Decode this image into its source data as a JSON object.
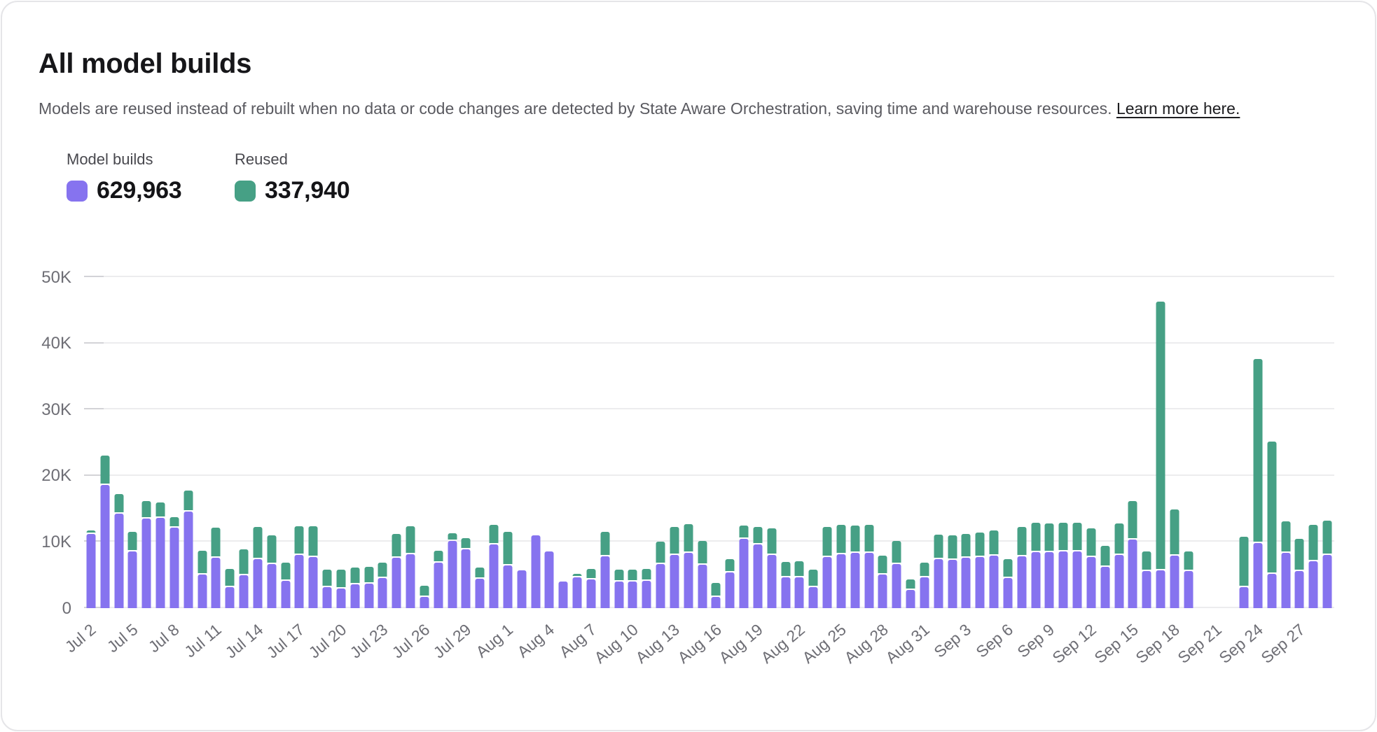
{
  "header": {
    "title": "All model builds",
    "description": "Models are reused instead of rebuilt when no data or code changes are detected by State Aware Orchestration, saving time and warehouse resources.",
    "link_text": "Learn more here."
  },
  "legend": {
    "items": [
      {
        "label": "Model builds",
        "value": "629,963",
        "color": "#8673EF"
      },
      {
        "label": "Reused",
        "value": "337,940",
        "color": "#46A085"
      }
    ]
  },
  "chart_data": {
    "type": "bar",
    "stacked": true,
    "title": "All model builds",
    "grid": true,
    "legend_position": "top-left",
    "ylim": [
      0,
      50000
    ],
    "y_ticks": [
      0,
      10000,
      20000,
      30000,
      40000,
      50000
    ],
    "y_tick_labels": [
      "0",
      "10K",
      "20K",
      "30K",
      "40K",
      "50K"
    ],
    "x_tick_every": 3,
    "x": [
      "Jul 2",
      "Jul 3",
      "Jul 4",
      "Jul 5",
      "Jul 6",
      "Jul 7",
      "Jul 8",
      "Jul 9",
      "Jul 10",
      "Jul 11",
      "Jul 12",
      "Jul 13",
      "Jul 14",
      "Jul 15",
      "Jul 16",
      "Jul 17",
      "Jul 18",
      "Jul 19",
      "Jul 20",
      "Jul 21",
      "Jul 22",
      "Jul 23",
      "Jul 24",
      "Jul 25",
      "Jul 26",
      "Jul 27",
      "Jul 28",
      "Jul 29",
      "Jul 30",
      "Jul 31",
      "Aug 1",
      "Aug 2",
      "Aug 3",
      "Aug 4",
      "Aug 5",
      "Aug 6",
      "Aug 7",
      "Aug 8",
      "Aug 9",
      "Aug 10",
      "Aug 11",
      "Aug 12",
      "Aug 13",
      "Aug 14",
      "Aug 15",
      "Aug 16",
      "Aug 17",
      "Aug 18",
      "Aug 19",
      "Aug 20",
      "Aug 21",
      "Aug 22",
      "Aug 23",
      "Aug 24",
      "Aug 25",
      "Aug 26",
      "Aug 27",
      "Aug 28",
      "Aug 29",
      "Aug 30",
      "Aug 31",
      "Sep 1",
      "Sep 2",
      "Sep 3",
      "Sep 4",
      "Sep 5",
      "Sep 6",
      "Sep 7",
      "Sep 8",
      "Sep 9",
      "Sep 10",
      "Sep 11",
      "Sep 12",
      "Sep 13",
      "Sep 14",
      "Sep 15",
      "Sep 16",
      "Sep 17",
      "Sep 18",
      "Sep 19",
      "Sep 20",
      "Sep 21",
      "Sep 22",
      "Sep 23",
      "Sep 24",
      "Sep 25",
      "Sep 26",
      "Sep 27",
      "Sep 28",
      "Sep 29"
    ],
    "series": [
      {
        "name": "Model builds",
        "color": "#8673EF",
        "values": [
          11200,
          18600,
          14300,
          8600,
          13500,
          13600,
          12200,
          14600,
          5100,
          7600,
          3200,
          5000,
          7400,
          6700,
          4100,
          8000,
          7700,
          3200,
          3000,
          3600,
          3700,
          4500,
          7600,
          8100,
          1700,
          6900,
          10100,
          8900,
          4400,
          9600,
          6400,
          5700,
          11000,
          8600,
          4000,
          4700,
          4300,
          7800,
          4000,
          4000,
          4100,
          6700,
          8000,
          8300,
          6600,
          1700,
          5400,
          10500,
          9600,
          8000,
          4600,
          4600,
          3200,
          7700,
          8100,
          8400,
          8300,
          5100,
          6700,
          2800,
          4700,
          7400,
          7300,
          7600,
          7700,
          7900,
          4500,
          7800,
          8500,
          8500,
          8600,
          8600,
          7700,
          6200,
          8000,
          10400,
          5600,
          5700,
          7900,
          5600,
          0,
          0,
          0,
          3200,
          9800,
          5200,
          8400,
          5600,
          7100,
          8000
        ]
      },
      {
        "name": "Reused",
        "color": "#46A085",
        "values": [
          300,
          4200,
          2700,
          2700,
          2500,
          2200,
          1300,
          3000,
          3400,
          4400,
          2500,
          3700,
          4600,
          4100,
          2600,
          4200,
          4500,
          2400,
          2600,
          2300,
          2300,
          2200,
          3400,
          4100,
          1500,
          1600,
          1000,
          1500,
          1500,
          2800,
          4900,
          0,
          0,
          0,
          0,
          300,
          1400,
          3500,
          1600,
          1600,
          1600,
          3100,
          4100,
          4200,
          3300,
          1900,
          1800,
          1800,
          2500,
          3800,
          2200,
          2300,
          2400,
          4400,
          4300,
          3900,
          4100,
          2600,
          3200,
          1300,
          2000,
          3500,
          3500,
          3400,
          3500,
          3600,
          2700,
          4300,
          4200,
          4100,
          4100,
          4100,
          4100,
          3000,
          4600,
          5600,
          2800,
          40400,
          6800,
          2800,
          0,
          0,
          0,
          7400,
          27600,
          19800,
          4500,
          4700,
          5300,
          5000
        ]
      }
    ]
  }
}
